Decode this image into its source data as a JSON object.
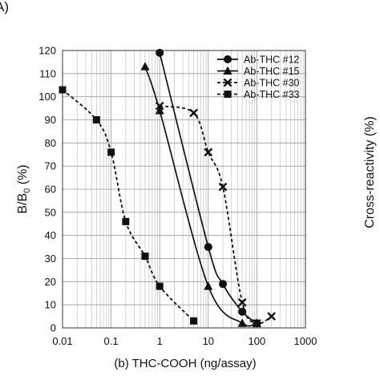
{
  "panel_label": "A)",
  "right_axis_label": "Cross-reactivity (%)",
  "chart_data": {
    "type": "scatter",
    "title": "",
    "xlabel": "(b)  THC-COOH (ng/assay)",
    "ylabel_main": "B/B",
    "ylabel_sub": "0",
    "ylabel_tail": " (%)",
    "xscale": "log",
    "xlim": [
      0.01,
      1000
    ],
    "ylim": [
      0,
      120
    ],
    "x_ticks": [
      0.01,
      0.1,
      1,
      10,
      100,
      1000
    ],
    "x_tick_labels": [
      "0.01",
      "0.1",
      "1",
      "10",
      "100",
      "1000"
    ],
    "y_ticks": [
      0,
      10,
      20,
      30,
      40,
      50,
      60,
      70,
      80,
      90,
      100,
      110,
      120
    ],
    "y_tick_labels": [
      "0",
      "10",
      "20",
      "30",
      "40",
      "50",
      "60",
      "70",
      "80",
      "90",
      "100",
      "110",
      "120"
    ],
    "grid": true,
    "legend_position": "top-right",
    "series": [
      {
        "name": "Ab-THC #12",
        "marker": "circle",
        "line": "solid",
        "points": [
          [
            1,
            119
          ],
          [
            10,
            35
          ],
          [
            20,
            19
          ],
          [
            50,
            7
          ],
          [
            100,
            2
          ]
        ]
      },
      {
        "name": "Ab-THC #15",
        "marker": "triangle",
        "line": "solid",
        "points": [
          [
            0.5,
            113
          ],
          [
            1,
            94
          ],
          [
            10,
            18
          ],
          [
            50,
            2
          ],
          [
            100,
            2
          ]
        ]
      },
      {
        "name": "Ab-THC #30",
        "marker": "x",
        "line": "dashed",
        "points": [
          [
            1,
            96
          ],
          [
            5,
            93
          ],
          [
            10,
            76
          ],
          [
            20,
            61
          ],
          [
            50,
            11
          ],
          [
            100,
            2
          ],
          [
            200,
            5
          ]
        ]
      },
      {
        "name": "Ab-THC #33",
        "marker": "square",
        "line": "dashed",
        "points": [
          [
            0.01,
            103
          ],
          [
            0.05,
            90
          ],
          [
            0.1,
            76
          ],
          [
            0.2,
            46
          ],
          [
            0.5,
            31
          ],
          [
            1,
            18
          ],
          [
            5,
            3
          ]
        ]
      }
    ]
  }
}
